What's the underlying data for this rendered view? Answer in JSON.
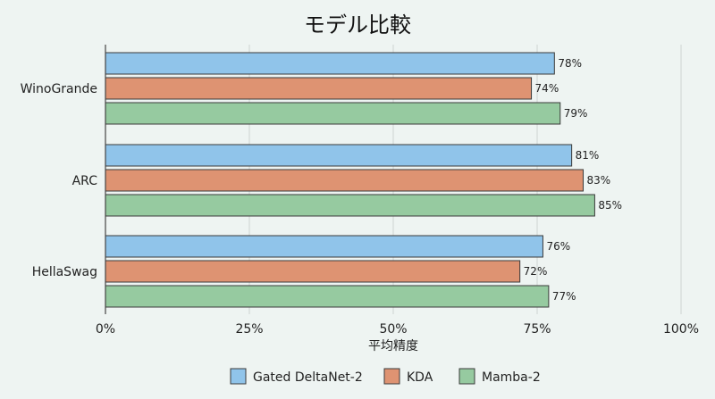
{
  "chart_data": {
    "type": "bar",
    "orientation": "horizontal",
    "title": "モデル比較",
    "xlabel": "平均精度",
    "ylabel": "",
    "xlim": [
      0,
      100
    ],
    "xticks": [
      "0%",
      "25%",
      "50%",
      "75%",
      "100%"
    ],
    "categories": [
      "WinoGrande",
      "ARC",
      "HellaSwag"
    ],
    "series": [
      {
        "name": "Gated DeltaNet-2",
        "values": [
          78,
          81,
          76
        ],
        "color": "#90c4ea"
      },
      {
        "name": "KDA",
        "values": [
          74,
          83,
          72
        ],
        "color": "#de9372"
      },
      {
        "name": "Mamba-2",
        "values": [
          79,
          85,
          77
        ],
        "color": "#96caa0"
      }
    ],
    "value_suffix": "%",
    "grid": true,
    "legend_position": "bottom"
  }
}
